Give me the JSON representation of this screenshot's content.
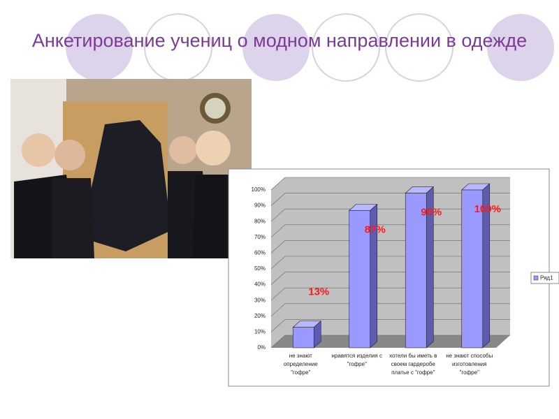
{
  "slide_title": "Анкетирование учениц о модном направлении в одежде",
  "chart_data": {
    "type": "bar3d",
    "categories": [
      "не знают\nопределение\n\"гофре\"",
      "нравятся изделия с\n\"гофре\"",
      "хотели бы иметь в\nсвоем гардеробе\nплатье с \"гофре\"",
      "не знают способы\nизготовления\n\"гофре\""
    ],
    "series": [
      {
        "name": "Ряд1",
        "color": "#9999ff",
        "values": [
          13,
          87,
          98,
          100
        ],
        "value_labels": [
          "13%",
          "87%",
          "98%",
          "100%"
        ]
      }
    ],
    "ylim": [
      0,
      100
    ],
    "yticks": [
      {
        "value": 0,
        "label": "0%"
      },
      {
        "value": 10,
        "label": "10%"
      },
      {
        "value": 20,
        "label": "20%"
      },
      {
        "value": 30,
        "label": "30%"
      },
      {
        "value": 40,
        "label": "40%"
      },
      {
        "value": 50,
        "label": "50%"
      },
      {
        "value": 60,
        "label": "60%"
      },
      {
        "value": 70,
        "label": "70%"
      },
      {
        "value": 80,
        "label": "80%"
      },
      {
        "value": 90,
        "label": "90%"
      },
      {
        "value": 100,
        "label": "100%"
      }
    ],
    "grid": true,
    "legend": "right"
  }
}
